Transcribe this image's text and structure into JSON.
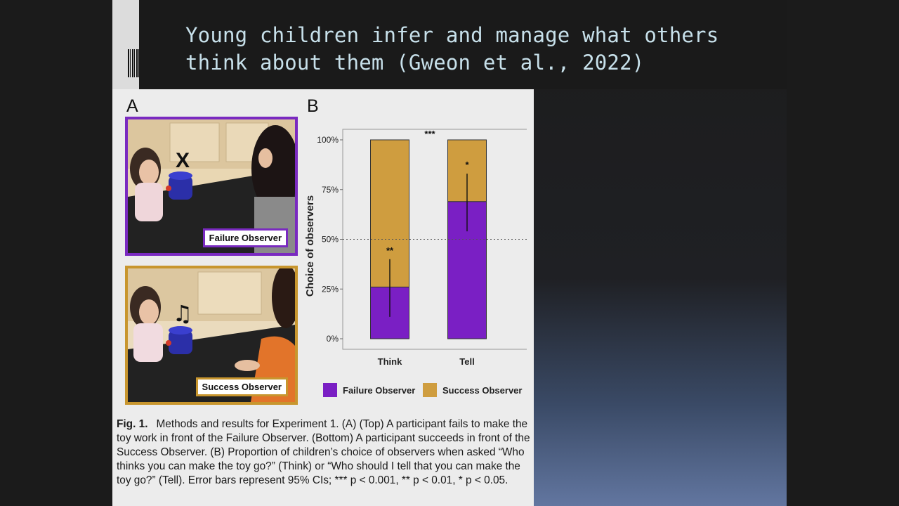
{
  "title": {
    "line1": "Young children infer and manage what others",
    "line2": "think about them (Gweon et al., 2022)"
  },
  "figure": {
    "panel_a_letter": "A",
    "panel_b_letter": "B",
    "photo_top": {
      "label": "Failure Observer",
      "mark": "X"
    },
    "photo_bottom": {
      "label": "Success Observer",
      "mark": "♫"
    },
    "legend": [
      {
        "label": "Failure Observer",
        "color": "#7a1fc4"
      },
      {
        "label": "Success Observer",
        "color": "#cf9d3f"
      }
    ],
    "caption_label": "Fig. 1.",
    "caption_text": "Methods and results for Experiment 1. (A) (Top) A participant fails to make the toy work in front of the Failure Observer. (Bottom) A participant succeeds in front of the Success Observer. (B) Proportion of children’s choice of observers when asked “Who thinks you can make the toy go?” (Think) or “Who should I tell that you can make the toy go?” (Tell). Error bars represent 95% CIs; *** p < 0.001, ** p < 0.01, * p < 0.05."
  },
  "chart_data": {
    "type": "bar",
    "stacked": true,
    "categories": [
      "Think",
      "Tell"
    ],
    "series": [
      {
        "name": "Failure Observer",
        "color": "#7a1fc4",
        "values": [
          26,
          69
        ]
      },
      {
        "name": "Success Observer",
        "color": "#cf9d3f",
        "values": [
          74,
          31
        ]
      }
    ],
    "error_bars": [
      {
        "category": "Think",
        "low": 11,
        "high": 40,
        "significance": "**"
      },
      {
        "category": "Tell",
        "low": 54,
        "high": 83,
        "significance": "*"
      }
    ],
    "comparison_significance": "***",
    "reference_line": 50,
    "ylabel": "Choice of observers",
    "xlabel": "",
    "yticks": [
      "0%",
      "25%",
      "50%",
      "75%",
      "100%"
    ],
    "ylim": [
      0,
      100
    ],
    "legend_position": "bottom"
  }
}
